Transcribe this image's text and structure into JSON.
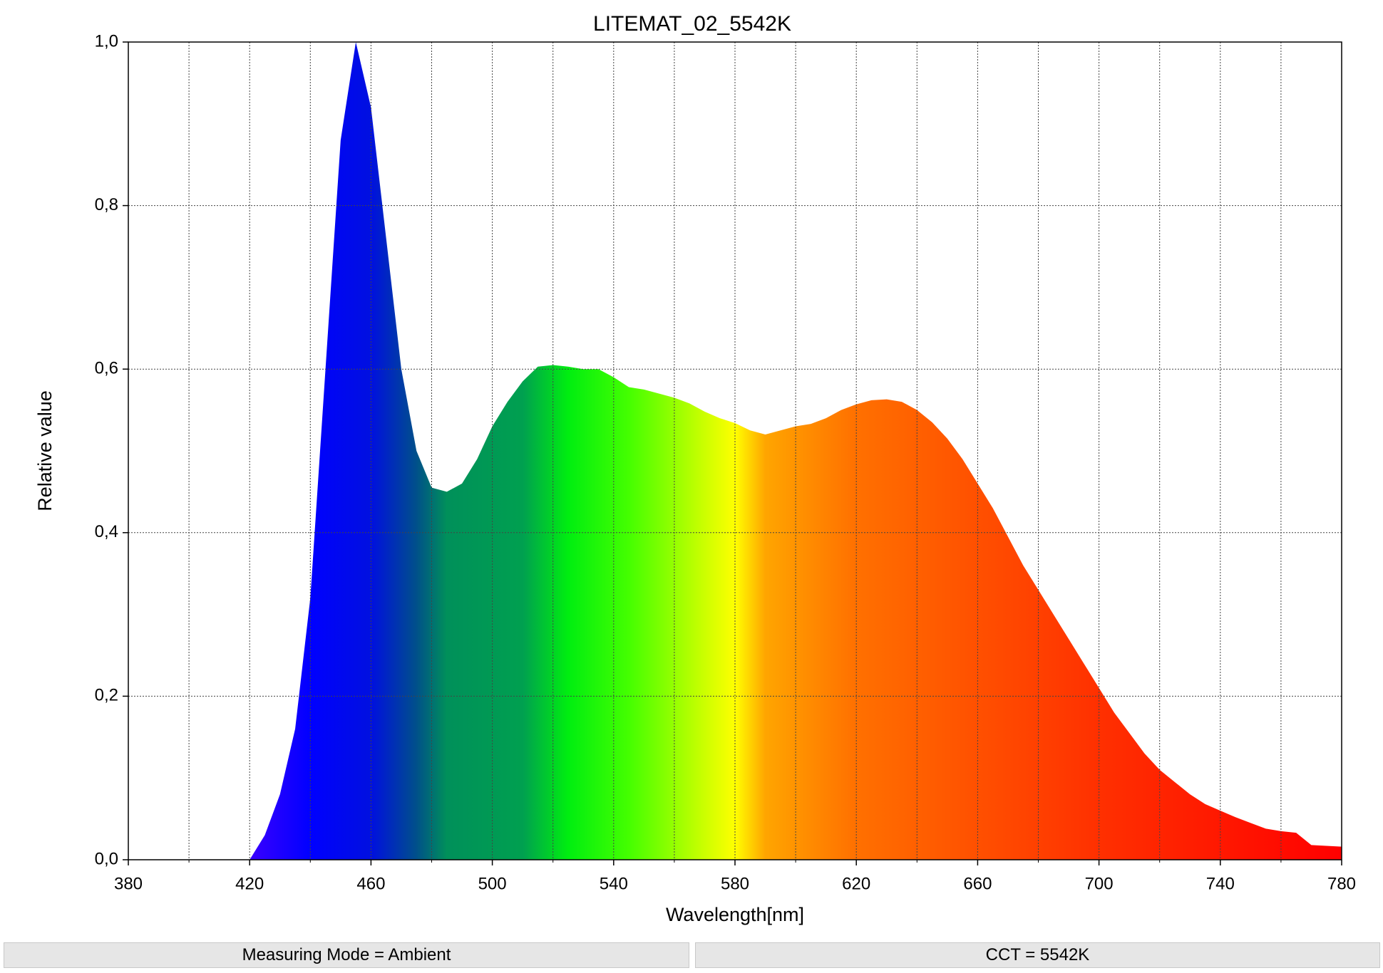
{
  "chart_data": {
    "type": "area",
    "title": "LITEMAT_02_5542K",
    "x_label": "Wavelength[nm]",
    "y_label": "Relative value",
    "x": [
      420,
      425,
      430,
      435,
      440,
      445,
      450,
      455,
      460,
      465,
      470,
      475,
      480,
      485,
      490,
      495,
      500,
      505,
      510,
      515,
      520,
      525,
      530,
      535,
      540,
      545,
      550,
      555,
      560,
      565,
      570,
      575,
      580,
      585,
      590,
      595,
      600,
      605,
      610,
      615,
      620,
      625,
      630,
      635,
      640,
      645,
      650,
      655,
      660,
      665,
      670,
      675,
      680,
      685,
      690,
      695,
      700,
      705,
      710,
      715,
      720,
      725,
      730,
      735,
      740,
      745,
      750,
      755,
      760,
      765,
      770,
      775,
      780
    ],
    "values": [
      0,
      0.03,
      0.08,
      0.16,
      0.32,
      0.6,
      0.88,
      1.0,
      0.92,
      0.76,
      0.6,
      0.5,
      0.455,
      0.45,
      0.46,
      0.49,
      0.53,
      0.56,
      0.585,
      0.603,
      0.605,
      0.603,
      0.6,
      0.6,
      0.59,
      0.578,
      0.575,
      0.57,
      0.565,
      0.558,
      0.548,
      0.54,
      0.534,
      0.525,
      0.52,
      0.525,
      0.53,
      0.533,
      0.54,
      0.55,
      0.557,
      0.562,
      0.563,
      0.56,
      0.55,
      0.535,
      0.515,
      0.49,
      0.46,
      0.43,
      0.395,
      0.36,
      0.33,
      0.3,
      0.27,
      0.24,
      0.21,
      0.18,
      0.155,
      0.13,
      0.11,
      0.095,
      0.08,
      0.068,
      0.06,
      0.052,
      0.045,
      0.038,
      0.035,
      0.033,
      0.018,
      0.017,
      0.016
    ],
    "gradient": [
      {
        "x": 420,
        "color": "#3a00ff"
      },
      {
        "x": 440,
        "color": "#0000ff"
      },
      {
        "x": 460,
        "color": "#0010e0"
      },
      {
        "x": 475,
        "color": "#00508a"
      },
      {
        "x": 485,
        "color": "#00905a"
      },
      {
        "x": 510,
        "color": "#00a050"
      },
      {
        "x": 525,
        "color": "#00ee10"
      },
      {
        "x": 545,
        "color": "#44ff00"
      },
      {
        "x": 570,
        "color": "#ccff00"
      },
      {
        "x": 580,
        "color": "#ffff00"
      },
      {
        "x": 590,
        "color": "#ffa500"
      },
      {
        "x": 620,
        "color": "#ff7000"
      },
      {
        "x": 660,
        "color": "#ff5000"
      },
      {
        "x": 700,
        "color": "#ff3000"
      },
      {
        "x": 780,
        "color": "#ff0000"
      }
    ],
    "xlim": [
      380,
      780
    ],
    "ylim": [
      0,
      1
    ],
    "xticks": [
      380,
      420,
      460,
      500,
      540,
      580,
      620,
      660,
      700,
      740,
      780
    ],
    "xminorticks": [
      400,
      440,
      480,
      520,
      560,
      600,
      640,
      680,
      720,
      760
    ],
    "yticks": [
      {
        "value": 0,
        "label": "0,0"
      },
      {
        "value": 0.2,
        "label": "0,2"
      },
      {
        "value": 0.4,
        "label": "0,4"
      },
      {
        "value": 0.6,
        "label": "0,6"
      },
      {
        "value": 0.8,
        "label": "0,8"
      },
      {
        "value": 1,
        "label": "1,0"
      }
    ],
    "grid": true
  },
  "status": [
    "Measuring Mode = Ambient",
    "CCT = 5542K"
  ]
}
